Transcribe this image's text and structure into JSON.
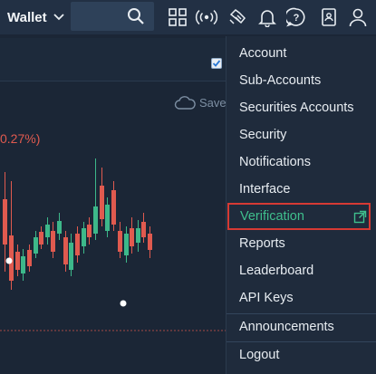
{
  "header": {
    "wallet_label": "Wallet",
    "icons": [
      "grid-icon",
      "broadcast-icon",
      "handshake-icon",
      "bell-icon",
      "help-icon",
      "contacts-book-icon",
      "user-icon"
    ]
  },
  "toolbar": {
    "save_label": "Save"
  },
  "chart": {
    "change_text": "0.27%)"
  },
  "account_menu": {
    "items": [
      {
        "label": "Account"
      },
      {
        "label": "Sub-Accounts"
      },
      {
        "label": "Securities Accounts"
      },
      {
        "label": "Security"
      },
      {
        "label": "Notifications"
      },
      {
        "label": "Interface"
      },
      {
        "label": "Verification"
      },
      {
        "label": "Reports"
      },
      {
        "label": "Leaderboard"
      },
      {
        "label": "API Keys"
      },
      {
        "label": "Announcements"
      },
      {
        "label": "Logout"
      }
    ]
  },
  "colors": {
    "up": "#3db88a",
    "down": "#e05a4f",
    "highlight_border": "#d63a34",
    "accent_green": "#3fbf8d"
  }
}
